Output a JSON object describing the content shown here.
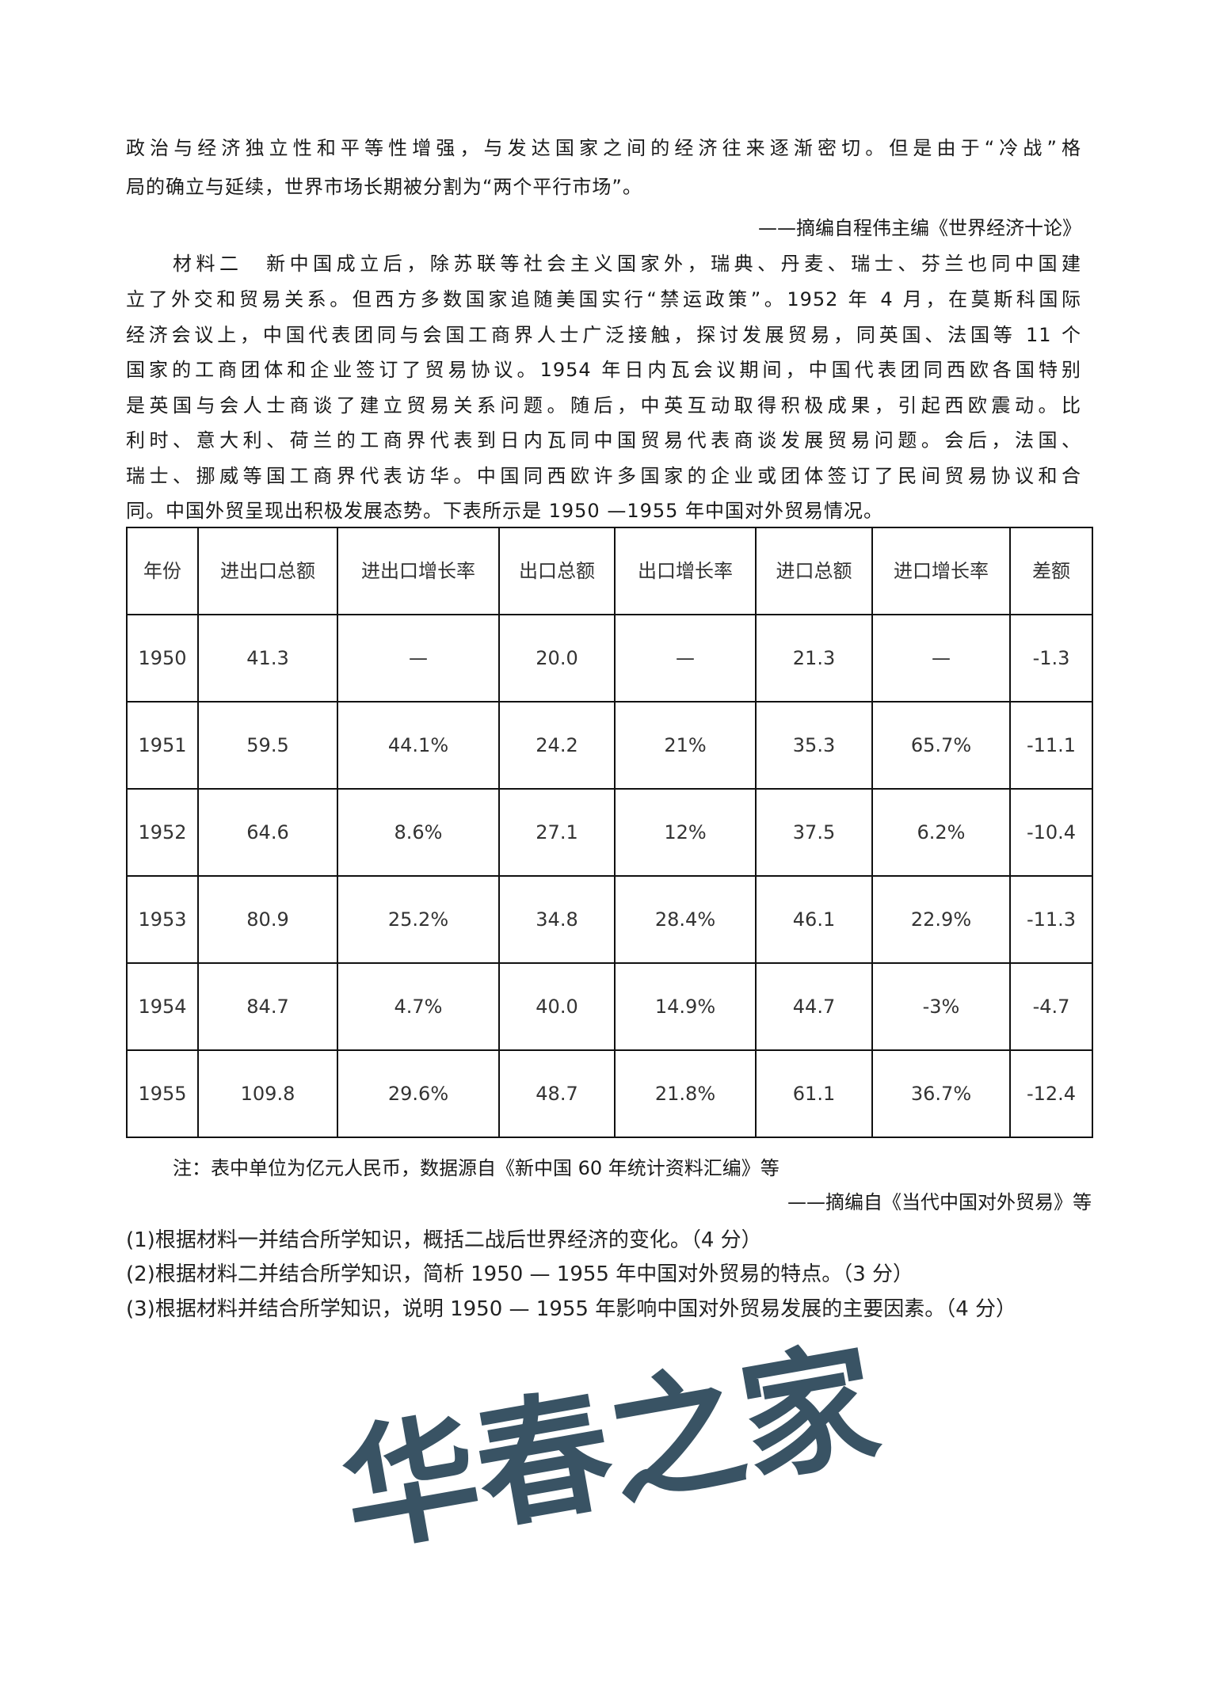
{
  "material1": {
    "lines": [
      "政治与经济独立性和平等性增强，与发达国家之间的经济往来逐渐密切。但是由于“冷战”格",
      "局的确立与延续，世界市场长期被分割为“两个平行市场”。"
    ],
    "source": "——摘编自程伟主编《世界经济十论》"
  },
  "material2": {
    "lines": [
      "材料二　新中国成立后，除苏联等社会主义国家外，瑞典、丹麦、瑞士、芬兰也同中国建",
      "立了外交和贸易关系。但西方多数国家追随美国实行“禁运政策”。1952 年 4 月，在莫斯科国际",
      "经济会议上，中国代表团同与会国工商界人士广泛接触，探讨发展贸易，同英国、法国等 11 个",
      "国家的工商团体和企业签订了贸易协议。1954 年日内瓦会议期间，中国代表团同西欧各国特别",
      "是英国与会人士商谈了建立贸易关系问题。随后，中英互动取得积极成果，引起西欧震动。比",
      "利时、意大利、荷兰的工商界代表到日内瓦同中国贸易代表商谈发展贸易问题。会后，法国、",
      "瑞士、挪威等国工商界代表访华。中国同西欧许多国家的企业或团体签订了民间贸易协议和合",
      "同。中国外贸呈现出积极发展态势。下表所示是 1950 —1955 年中国对外贸易情况。"
    ]
  },
  "table": {
    "headers": [
      "年份",
      "进出口总额",
      "进出口增长率",
      "出口总额",
      "出口增长率",
      "进口总额",
      "进口增长率",
      "差额"
    ],
    "rows": [
      [
        "1950",
        "41.3",
        "—",
        "20.0",
        "—",
        "21.3",
        "—",
        "-1.3"
      ],
      [
        "1951",
        "59.5",
        "44.1%",
        "24.2",
        "21%",
        "35.3",
        "65.7%",
        "-11.1"
      ],
      [
        "1952",
        "64.6",
        "8.6%",
        "27.1",
        "12%",
        "37.5",
        "6.2%",
        "-10.4"
      ],
      [
        "1953",
        "80.9",
        "25.2%",
        "34.8",
        "28.4%",
        "46.1",
        "22.9%",
        "-11.3"
      ],
      [
        "1954",
        "84.7",
        "4.7%",
        "40.0",
        "14.9%",
        "44.7",
        "-3%",
        "-4.7"
      ],
      [
        "1955",
        "109.8",
        "29.6%",
        "48.7",
        "21.8%",
        "61.1",
        "36.7%",
        "-12.4"
      ]
    ],
    "note": "注：表中单位为亿元人民币，数据源自《新中国 60 年统计资料汇编》等",
    "source": "——摘编自《当代中国对外贸易》等"
  },
  "questions": [
    "(1)根据材料一并结合所学知识，概括二战后世界经济的变化。（4 分）",
    "(2)根据材料二并结合所学知识，简析 1950 — 1955 年中国对外贸易的特点。（3 分）",
    "(3)根据材料并结合所学知识，说明 1950 — 1955 年影响中国对外贸易发展的主要因素。（4 分）"
  ],
  "watermark": "华春之家"
}
